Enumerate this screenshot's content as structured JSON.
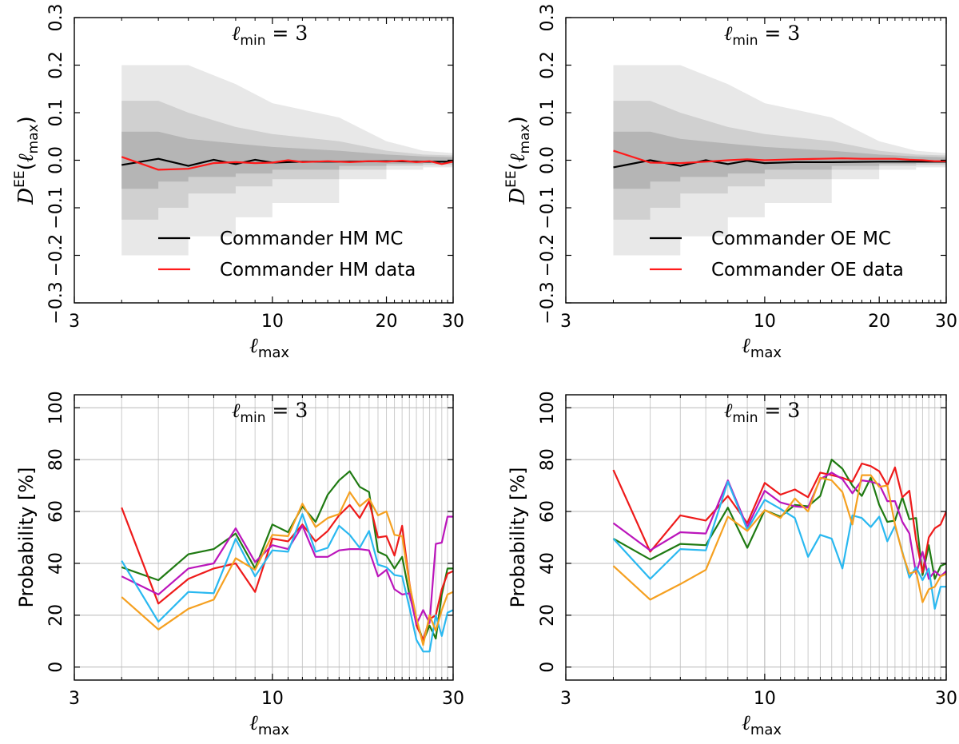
{
  "colors": {
    "mc": "#000000",
    "data": "#ff1a1a",
    "band_outer": "#e8e8e8",
    "band_mid": "#d0d0d0",
    "band_inner": "#b5b5b5",
    "green": "#1f7a12",
    "red": "#ee1a1a",
    "magenta": "#bb15bb",
    "cyan": "#29b8f0",
    "orange": "#f5a020",
    "grid": "#cccccc"
  },
  "labels": {
    "ylabel_top_base": "D",
    "ylabel_top_sup": "EE",
    "ylabel_top_arg": "max",
    "ylabel_bottom": "Probability [%]",
    "xlabel_base": "ℓ",
    "xlabel_sub": "max",
    "lmin_base": "ℓ",
    "lmin_sub": "min",
    "lmin_eq": " = 3"
  },
  "chart_data": [
    {
      "type": "line",
      "panel": "top-left",
      "title": "",
      "annotation": "ℓ_min = 3",
      "xlabel": "ℓ_max",
      "ylabel": "D^EE(ℓ_max)",
      "xscale": "log",
      "xlim": [
        3,
        30
      ],
      "ylim": [
        -0.3,
        0.3
      ],
      "xticks": [
        3,
        10,
        20,
        30
      ],
      "yticks": [
        -0.3,
        -0.2,
        -0.1,
        0.0,
        0.1,
        0.2,
        0.3
      ],
      "ytick_labels": [
        "−0.3",
        "−0.2",
        "−0.1",
        "0.0",
        "0.1",
        "0.2",
        "0.3"
      ],
      "xtick_labels": [
        "3",
        "10",
        "20",
        "30"
      ],
      "legend_location": "lower-right",
      "legend": [
        "Commander HM MC",
        "Commander HM data"
      ],
      "bands": {
        "x": [
          4,
          5,
          6,
          8,
          10,
          15,
          20,
          25,
          30
        ],
        "outer": [
          0.2,
          0.2,
          0.16,
          0.12,
          0.09,
          0.04,
          0.02,
          0.015,
          0.01
        ],
        "mid": [
          0.125,
          0.1,
          0.07,
          0.055,
          0.04,
          0.02,
          0.012,
          0.01,
          0.008
        ],
        "inner": [
          0.06,
          0.045,
          0.035,
          0.028,
          0.02,
          0.012,
          0.008,
          0.006,
          0.005
        ]
      },
      "series": [
        {
          "name": "Commander HM MC",
          "x": [
            4,
            5,
            6,
            7,
            8,
            9,
            10,
            12,
            15,
            20,
            25,
            30
          ],
          "y": [
            -0.01,
            0.003,
            -0.012,
            0.001,
            -0.008,
            0.001,
            -0.005,
            -0.003,
            -0.003,
            -0.002,
            -0.003,
            -0.003
          ]
        },
        {
          "name": "Commander HM data",
          "x": [
            4,
            5,
            6,
            7,
            8,
            9,
            10,
            11,
            12,
            14,
            16,
            18,
            20,
            22,
            24,
            26,
            28,
            30
          ],
          "y": [
            0.007,
            -0.02,
            -0.018,
            -0.006,
            -0.004,
            -0.006,
            -0.005,
            0.0,
            -0.004,
            -0.002,
            -0.004,
            -0.002,
            -0.003,
            -0.001,
            -0.004,
            -0.002,
            -0.008,
            -0.003
          ]
        }
      ]
    },
    {
      "type": "line",
      "panel": "top-right",
      "title": "",
      "annotation": "ℓ_min = 3",
      "xlabel": "ℓ_max",
      "ylabel": "D^EE(ℓ_max)",
      "xscale": "log",
      "xlim": [
        3,
        30
      ],
      "ylim": [
        -0.3,
        0.3
      ],
      "xticks": [
        3,
        10,
        20,
        30
      ],
      "yticks": [
        -0.3,
        -0.2,
        -0.1,
        0.0,
        0.1,
        0.2,
        0.3
      ],
      "ytick_labels": [
        "−0.3",
        "−0.2",
        "−0.1",
        "0.0",
        "0.1",
        "0.2",
        "0.3"
      ],
      "xtick_labels": [
        "3",
        "10",
        "20",
        "30"
      ],
      "legend_location": "lower-right",
      "legend": [
        "Commander OE MC",
        "Commander OE data"
      ],
      "bands": {
        "x": [
          4,
          5,
          6,
          8,
          10,
          15,
          20,
          25,
          30
        ],
        "outer": [
          0.2,
          0.2,
          0.16,
          0.12,
          0.09,
          0.04,
          0.02,
          0.015,
          0.01
        ],
        "mid": [
          0.125,
          0.1,
          0.07,
          0.055,
          0.04,
          0.02,
          0.012,
          0.01,
          0.008
        ],
        "inner": [
          0.06,
          0.045,
          0.035,
          0.028,
          0.02,
          0.012,
          0.008,
          0.006,
          0.005
        ]
      },
      "series": [
        {
          "name": "Commander OE MC",
          "x": [
            4,
            5,
            6,
            7,
            8,
            9,
            10,
            12,
            15,
            20,
            25,
            30
          ],
          "y": [
            -0.015,
            0.0,
            -0.012,
            0.0,
            -0.008,
            -0.001,
            -0.006,
            -0.004,
            -0.004,
            -0.003,
            -0.003,
            -0.003
          ]
        },
        {
          "name": "Commander OE data",
          "x": [
            4,
            5,
            6,
            7,
            8,
            9,
            10,
            12,
            14,
            16,
            18,
            20,
            22,
            24,
            26,
            28,
            30
          ],
          "y": [
            0.02,
            -0.005,
            -0.006,
            -0.003,
            0.0,
            0.002,
            0.0,
            0.002,
            0.003,
            0.004,
            0.003,
            0.003,
            0.003,
            0.001,
            0.0,
            -0.002,
            -0.002
          ]
        }
      ]
    },
    {
      "type": "line",
      "panel": "bottom-left",
      "title": "",
      "annotation": "ℓ_min = 3",
      "xlabel": "ℓ_max",
      "ylabel": "Probability [%]",
      "xscale": "log",
      "xlim": [
        3,
        30
      ],
      "ylim": [
        -5,
        105
      ],
      "xticks": [
        3,
        10,
        30
      ],
      "yticks": [
        0,
        20,
        40,
        60,
        80,
        100
      ],
      "ytick_labels": [
        "0",
        "20",
        "40",
        "60",
        "80",
        "100"
      ],
      "xtick_labels": [
        "3",
        "10",
        "30"
      ],
      "grid": true,
      "x": [
        4,
        5,
        6,
        7,
        8,
        9,
        10,
        11,
        12,
        13,
        14,
        15,
        16,
        17,
        18,
        19,
        20,
        21,
        22,
        23,
        24,
        25,
        26,
        27,
        28,
        29,
        30
      ],
      "series": [
        {
          "name": "green",
          "color_key": "green",
          "values": [
            38.5,
            33.5,
            43.5,
            45.5,
            51.5,
            38.0,
            55.0,
            52.0,
            62.0,
            56.0,
            66.5,
            72.0,
            75.5,
            69.5,
            67.5,
            44.5,
            43.0,
            38.0,
            42.5,
            28.0,
            18.0,
            10.0,
            16.0,
            11.0,
            28.0,
            38.0,
            38.0
          ]
        },
        {
          "name": "red",
          "color_key": "red",
          "values": [
            61.5,
            24.5,
            34.0,
            38.0,
            40.0,
            29.0,
            49.5,
            48.5,
            55.0,
            48.5,
            52.5,
            58.5,
            62.5,
            57.5,
            64.0,
            50.0,
            50.5,
            43.0,
            54.5,
            32.5,
            16.0,
            10.5,
            18.5,
            20.0,
            30.0,
            36.0,
            37.0
          ]
        },
        {
          "name": "magenta",
          "color_key": "magenta",
          "values": [
            35.0,
            28.0,
            38.0,
            40.0,
            53.5,
            40.5,
            47.0,
            45.5,
            54.5,
            42.5,
            42.5,
            45.0,
            45.5,
            45.5,
            45.0,
            35.0,
            37.5,
            30.0,
            28.0,
            28.5,
            16.5,
            22.0,
            17.0,
            47.5,
            48.0,
            58.0,
            58.0
          ]
        },
        {
          "name": "cyan",
          "color_key": "cyan",
          "values": [
            41.0,
            17.5,
            29.0,
            28.5,
            49.5,
            35.0,
            45.0,
            44.5,
            59.0,
            44.5,
            46.0,
            54.5,
            51.0,
            46.0,
            52.5,
            39.5,
            38.5,
            35.5,
            35.0,
            23.0,
            10.5,
            6.0,
            6.0,
            20.0,
            12.0,
            21.0,
            22.0
          ]
        },
        {
          "name": "orange",
          "color_key": "orange",
          "values": [
            27.0,
            14.5,
            22.5,
            26.0,
            42.0,
            37.5,
            51.0,
            50.5,
            63.0,
            54.0,
            57.5,
            59.0,
            67.5,
            62.0,
            65.0,
            58.5,
            60.0,
            51.0,
            50.5,
            32.0,
            19.0,
            8.5,
            20.0,
            14.0,
            22.0,
            28.0,
            29.0
          ]
        }
      ]
    },
    {
      "type": "line",
      "panel": "bottom-right",
      "title": "",
      "annotation": "ℓ_min = 3",
      "xlabel": "ℓ_max",
      "ylabel": "Probability [%]",
      "xscale": "log",
      "xlim": [
        3,
        30
      ],
      "ylim": [
        -5,
        105
      ],
      "xticks": [
        3,
        10,
        30
      ],
      "yticks": [
        0,
        20,
        40,
        60,
        80,
        100
      ],
      "ytick_labels": [
        "0",
        "20",
        "40",
        "60",
        "80",
        "100"
      ],
      "xtick_labels": [
        "3",
        "10",
        "30"
      ],
      "grid": true,
      "x": [
        4,
        5,
        6,
        7,
        8,
        9,
        10,
        11,
        12,
        13,
        14,
        15,
        16,
        17,
        18,
        19,
        20,
        21,
        22,
        23,
        24,
        25,
        26,
        27,
        28,
        29,
        30
      ],
      "series": [
        {
          "name": "green",
          "color_key": "green",
          "values": [
            49.5,
            41.5,
            47.5,
            47.0,
            61.5,
            46.0,
            60.5,
            58.0,
            62.5,
            62.0,
            66.0,
            80.0,
            76.5,
            70.0,
            66.0,
            73.0,
            62.5,
            56.0,
            56.5,
            65.5,
            57.0,
            57.5,
            35.5,
            47.0,
            34.0,
            39.0,
            40.0
          ]
        },
        {
          "name": "red",
          "color_key": "red",
          "values": [
            76.0,
            44.5,
            58.5,
            56.5,
            66.0,
            55.5,
            71.0,
            66.5,
            68.5,
            65.5,
            75.0,
            74.0,
            73.0,
            71.5,
            78.5,
            77.5,
            75.5,
            70.0,
            77.0,
            65.5,
            68.0,
            49.0,
            36.5,
            50.0,
            53.5,
            55.0,
            60.0
          ]
        },
        {
          "name": "magenta",
          "color_key": "magenta",
          "values": [
            55.5,
            45.0,
            52.0,
            51.5,
            72.0,
            54.0,
            68.0,
            63.5,
            62.0,
            61.5,
            72.5,
            75.0,
            72.5,
            67.0,
            72.0,
            71.5,
            70.5,
            64.0,
            64.0,
            56.0,
            51.5,
            36.0,
            44.5,
            34.0,
            37.0,
            35.0,
            37.0
          ]
        },
        {
          "name": "cyan",
          "color_key": "cyan",
          "values": [
            49.5,
            34.0,
            45.5,
            45.0,
            71.5,
            53.0,
            64.5,
            61.0,
            57.5,
            42.5,
            51.0,
            49.5,
            38.0,
            58.5,
            57.5,
            54.0,
            58.0,
            48.5,
            54.5,
            44.5,
            34.5,
            38.5,
            33.5,
            38.0,
            22.5,
            31.0,
            31.0
          ]
        },
        {
          "name": "orange",
          "color_key": "orange",
          "values": [
            39.0,
            26.0,
            32.0,
            37.5,
            58.0,
            52.5,
            60.5,
            57.5,
            65.0,
            60.0,
            73.0,
            72.0,
            67.5,
            55.0,
            74.0,
            74.0,
            69.5,
            70.0,
            55.0,
            44.0,
            36.0,
            37.0,
            25.0,
            30.0,
            31.0,
            35.0,
            36.0
          ]
        }
      ]
    }
  ]
}
